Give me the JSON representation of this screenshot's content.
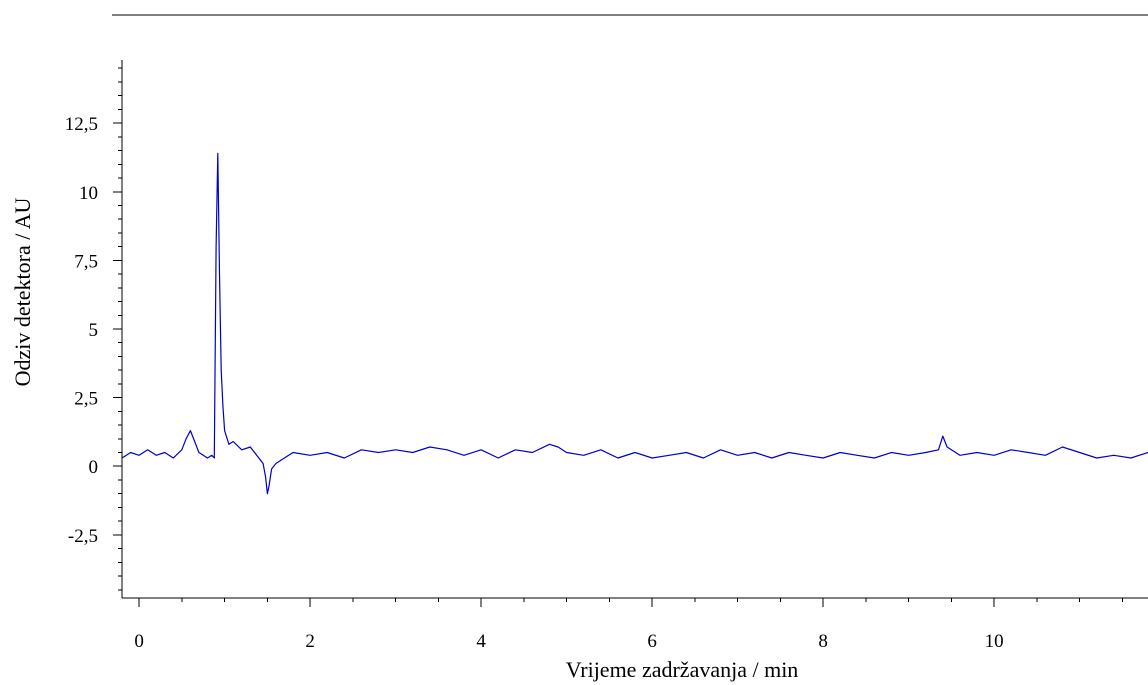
{
  "chart_data": {
    "type": "line",
    "title": "",
    "xlabel": "Vrijeme zadržavanja / min",
    "ylabel": "Odziv detektora / AU",
    "xlim": [
      -0.2,
      11.8
    ],
    "ylim": [
      -4.8,
      14.8
    ],
    "x_ticks": [
      {
        "value": 0,
        "label": "0"
      },
      {
        "value": 2,
        "label": "2"
      },
      {
        "value": 4,
        "label": "4"
      },
      {
        "value": 6,
        "label": "6"
      },
      {
        "value": 8,
        "label": "8"
      },
      {
        "value": 10,
        "label": "10"
      }
    ],
    "y_ticks": [
      {
        "value": -2.5,
        "label": "-2,5"
      },
      {
        "value": 0,
        "label": "0"
      },
      {
        "value": 2.5,
        "label": "2,5"
      },
      {
        "value": 5,
        "label": "5"
      },
      {
        "value": 7.5,
        "label": "7,5"
      },
      {
        "value": 10,
        "label": "10"
      },
      {
        "value": 12.5,
        "label": "12,5"
      }
    ],
    "grid": false,
    "legend": "none",
    "series_color": "#0000cc",
    "series": [
      {
        "x": [
          -0.2,
          -0.1,
          0.0,
          0.1,
          0.2,
          0.3,
          0.4,
          0.5,
          0.55,
          0.6,
          0.65,
          0.7,
          0.75,
          0.8,
          0.85,
          0.88,
          0.9,
          0.92,
          0.94,
          0.96,
          0.98,
          1.0,
          1.05,
          1.1,
          1.2,
          1.3,
          1.4,
          1.45,
          1.48,
          1.5,
          1.52,
          1.55,
          1.6,
          1.7,
          1.8,
          2.0,
          2.2,
          2.4,
          2.6,
          2.8,
          3.0,
          3.2,
          3.4,
          3.6,
          3.8,
          4.0,
          4.2,
          4.4,
          4.6,
          4.8,
          4.9,
          5.0,
          5.2,
          5.4,
          5.6,
          5.8,
          6.0,
          6.2,
          6.4,
          6.6,
          6.8,
          7.0,
          7.2,
          7.4,
          7.6,
          7.8,
          8.0,
          8.2,
          8.4,
          8.6,
          8.8,
          9.0,
          9.2,
          9.35,
          9.4,
          9.45,
          9.6,
          9.8,
          10.0,
          10.2,
          10.4,
          10.6,
          10.8,
          11.0,
          11.2,
          11.4,
          11.6,
          11.8
        ],
        "y": [
          0.3,
          0.5,
          0.4,
          0.6,
          0.4,
          0.5,
          0.3,
          0.6,
          1.0,
          1.3,
          0.9,
          0.5,
          0.4,
          0.3,
          0.4,
          0.3,
          8.0,
          11.4,
          7.0,
          3.5,
          2.2,
          1.3,
          0.8,
          0.9,
          0.6,
          0.7,
          0.3,
          0.1,
          -0.4,
          -1.0,
          -0.7,
          -0.1,
          0.1,
          0.3,
          0.5,
          0.4,
          0.5,
          0.3,
          0.6,
          0.5,
          0.6,
          0.5,
          0.7,
          0.6,
          0.4,
          0.6,
          0.3,
          0.6,
          0.5,
          0.8,
          0.7,
          0.5,
          0.4,
          0.6,
          0.3,
          0.5,
          0.3,
          0.4,
          0.5,
          0.3,
          0.6,
          0.4,
          0.5,
          0.3,
          0.5,
          0.4,
          0.3,
          0.5,
          0.4,
          0.3,
          0.5,
          0.4,
          0.5,
          0.6,
          1.1,
          0.7,
          0.4,
          0.5,
          0.4,
          0.6,
          0.5,
          0.4,
          0.7,
          0.5,
          0.3,
          0.4,
          0.3,
          0.5
        ]
      }
    ]
  }
}
